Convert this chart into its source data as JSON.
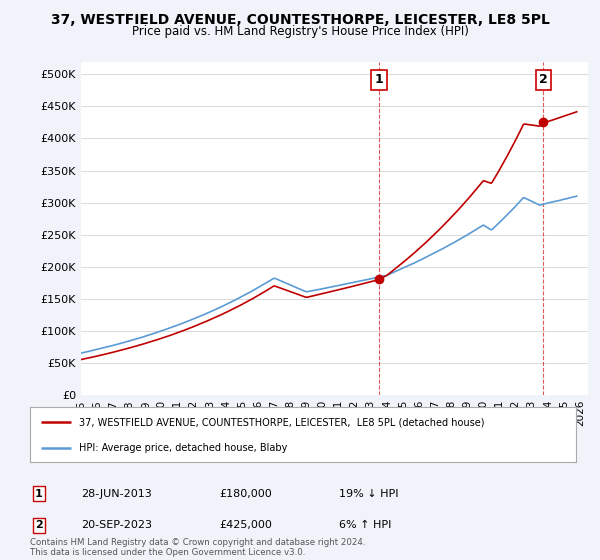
{
  "title": "37, WESTFIELD AVENUE, COUNTESTHORPE, LEICESTER, LE8 5PL",
  "subtitle": "Price paid vs. HM Land Registry's House Price Index (HPI)",
  "ylabel_ticks": [
    "£0",
    "£50K",
    "£100K",
    "£150K",
    "£200K",
    "£250K",
    "£300K",
    "£350K",
    "£400K",
    "£450K",
    "£500K"
  ],
  "ytick_values": [
    0,
    50000,
    100000,
    150000,
    200000,
    250000,
    300000,
    350000,
    400000,
    450000,
    500000
  ],
  "ylim": [
    0,
    520000
  ],
  "xlim_start": 1995.0,
  "xlim_end": 2026.5,
  "hpi_color": "#5b9bd5",
  "price_color": "#c00000",
  "marker1_date": 2013.5,
  "marker1_value": 180000,
  "marker2_date": 2023.73,
  "marker2_value": 425000,
  "legend_line1": "37, WESTFIELD AVENUE, COUNTESTHORPE, LEICESTER,  LE8 5PL (detached house)",
  "legend_line2": "HPI: Average price, detached house, Blaby",
  "table_row1": [
    "1",
    "28-JUN-2013",
    "£180,000",
    "19% ↓ HPI"
  ],
  "table_row2": [
    "2",
    "20-SEP-2023",
    "£425,000",
    "6% ↑ HPI"
  ],
  "footer": "Contains HM Land Registry data © Crown copyright and database right 2024.\nThis data is licensed under the Open Government Licence v3.0.",
  "bg_color": "#f0f4fa",
  "plot_bg": "#ffffff",
  "grid_color": "#cccccc",
  "xtick_years": [
    1995,
    1996,
    1997,
    1998,
    1999,
    2000,
    2001,
    2002,
    2003,
    2004,
    2005,
    2006,
    2007,
    2008,
    2009,
    2010,
    2011,
    2012,
    2013,
    2014,
    2015,
    2016,
    2017,
    2018,
    2019,
    2020,
    2021,
    2022,
    2023,
    2024,
    2025,
    2026
  ]
}
